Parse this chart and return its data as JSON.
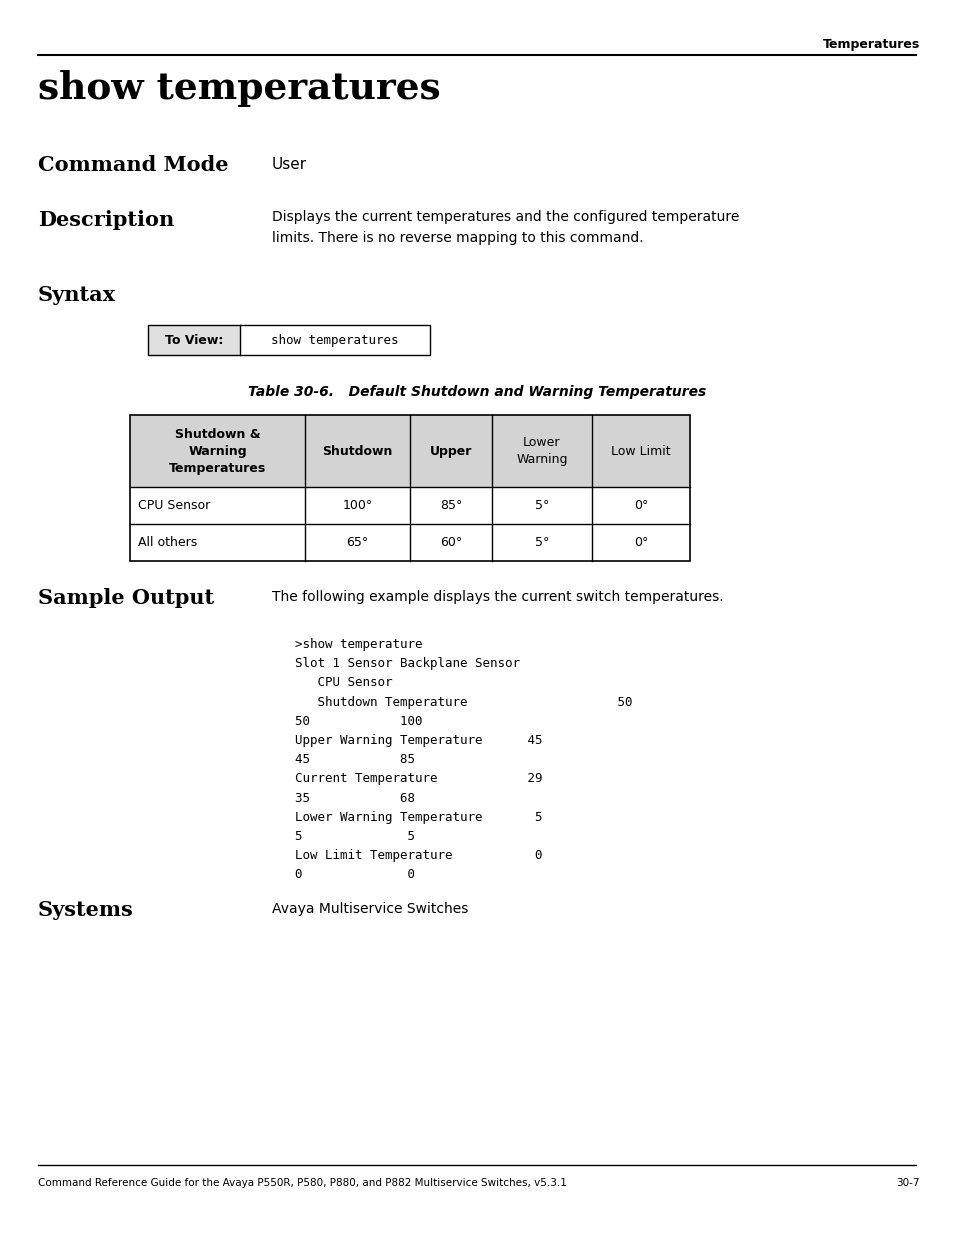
{
  "page_header": "Temperatures",
  "title": "show temperatures",
  "command_mode_label": "Command Mode",
  "command_mode_value": "User",
  "description_label": "Description",
  "description_text": "Displays the current temperatures and the configured temperature\nlimits. There is no reverse mapping to this command.",
  "syntax_label": "Syntax",
  "syntax_table_label": "To View:",
  "syntax_table_value": "show temperatures",
  "table_caption": "Table 30-6.   Default Shutdown and Warning Temperatures",
  "table_headers": [
    "Shutdown &\nWarning\nTemperatures",
    "Shutdown",
    "Upper",
    "Lower\nWarning",
    "Low Limit"
  ],
  "table_col_bold": [
    true,
    true,
    true,
    false,
    false
  ],
  "table_rows": [
    [
      "CPU Sensor",
      "100°",
      "85°",
      "5°",
      "0°"
    ],
    [
      "All others",
      "65°",
      "60°",
      "5°",
      "0°"
    ]
  ],
  "sample_output_label": "Sample Output",
  "sample_output_desc": "The following example displays the current switch temperatures.",
  "sample_output_code": ">show temperature\nSlot 1 Sensor Backplane Sensor\n   CPU Sensor\n   Shutdown Temperature                    50\n50            100\nUpper Warning Temperature      45\n45            85\nCurrent Temperature            29\n35            68\nLower Warning Temperature       5\n5              5\nLow Limit Temperature           0\n0              0",
  "systems_label": "Systems",
  "systems_value": "Avaya Multiservice Switches",
  "footer_text": "Command Reference Guide for the Avaya P550R, P580, P880, and P882 Multiservice Switches, v5.3.1",
  "footer_page": "30-7",
  "bg_color": "#ffffff",
  "text_color": "#000000",
  "table_header_bg": "#d3d3d3",
  "table_border_color": "#000000",
  "syntax_label_bg": "#e0e0e0"
}
